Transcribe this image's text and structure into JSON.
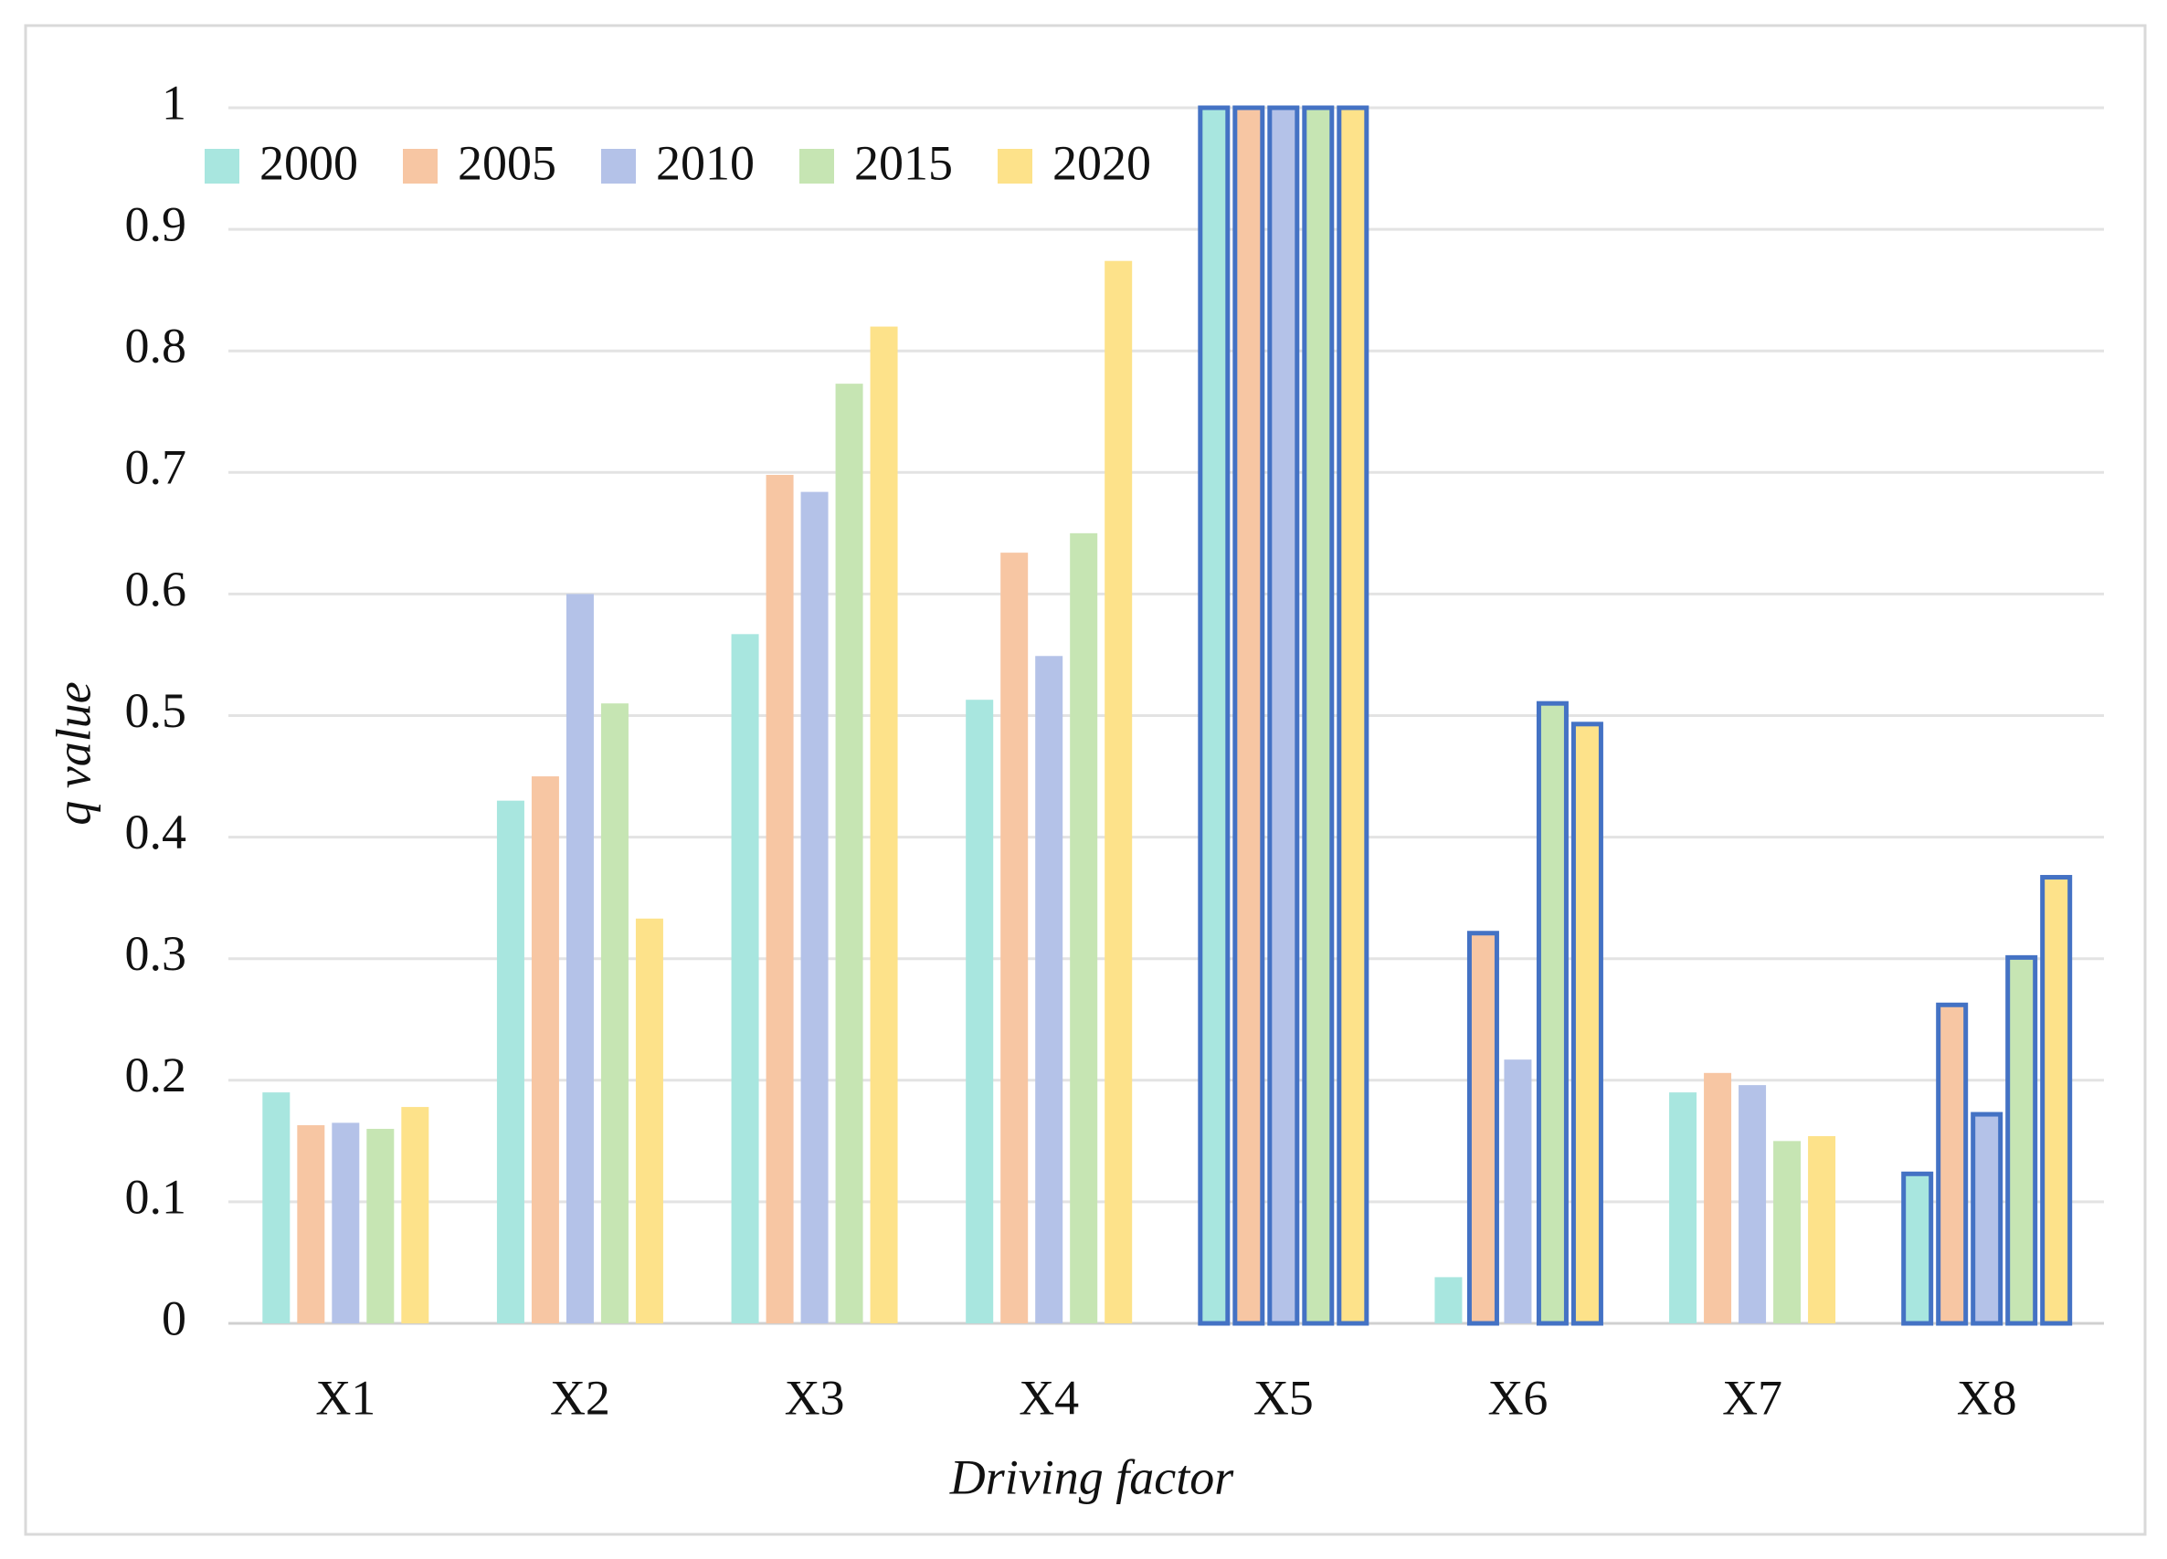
{
  "chart_data": {
    "type": "bar",
    "x_label": "Driving factor",
    "y_label": "q value",
    "categories": [
      "X1",
      "X2",
      "X3",
      "X4",
      "X5",
      "X6",
      "X7",
      "X8"
    ],
    "series": [
      {
        "name": "2000",
        "color": "#a8e6df",
        "values": [
          0.19,
          0.43,
          0.567,
          0.513,
          1,
          0.038,
          0.19,
          0.123
        ],
        "outlined": [
          false,
          false,
          false,
          false,
          true,
          false,
          false,
          true
        ]
      },
      {
        "name": "2005",
        "color": "#f7c6a3",
        "values": [
          0.163,
          0.45,
          0.698,
          0.634,
          1,
          0.321,
          0.206,
          0.262
        ],
        "outlined": [
          false,
          false,
          false,
          false,
          true,
          true,
          false,
          true
        ]
      },
      {
        "name": "2010",
        "color": "#b4c2e8",
        "values": [
          0.165,
          0.6,
          0.684,
          0.549,
          1,
          0.217,
          0.196,
          0.172
        ],
        "outlined": [
          false,
          false,
          false,
          false,
          true,
          false,
          false,
          true
        ]
      },
      {
        "name": "2015",
        "color": "#c6e5b3",
        "values": [
          0.16,
          0.51,
          0.773,
          0.65,
          1,
          0.51,
          0.15,
          0.301
        ],
        "outlined": [
          false,
          false,
          false,
          false,
          true,
          true,
          false,
          true
        ]
      },
      {
        "name": "2020",
        "color": "#fde28a",
        "values": [
          0.178,
          0.333,
          0.82,
          0.874,
          1,
          0.493,
          0.154,
          0.367
        ],
        "outlined": [
          false,
          false,
          false,
          false,
          true,
          true,
          false,
          true
        ]
      }
    ],
    "outline_color": "#4472c4",
    "ylim": [
      0,
      1
    ],
    "yticks": [
      0,
      0.1,
      0.2,
      0.3,
      0.4,
      0.5,
      0.6,
      0.7,
      0.8,
      0.9,
      1
    ],
    "grid": true,
    "legend": "top-left"
  }
}
